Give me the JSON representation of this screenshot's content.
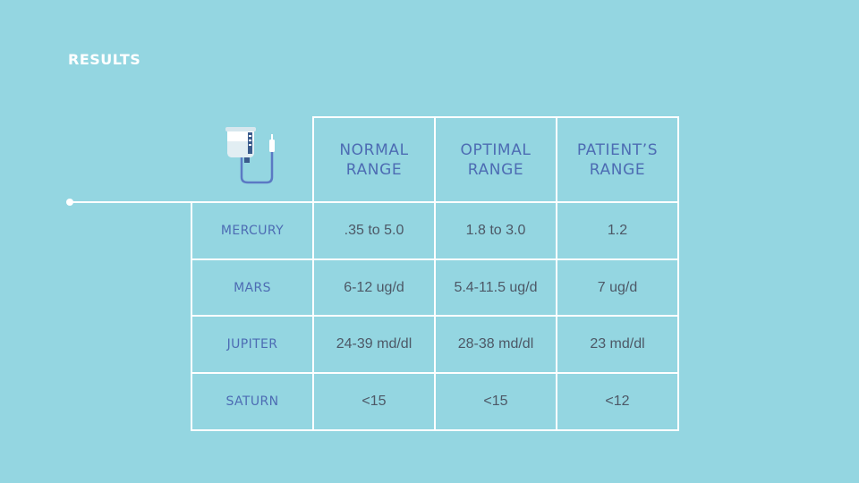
{
  "title": "RESULTS",
  "icons": {
    "header_icon": "iv-bag-icon"
  },
  "colors": {
    "background": "#94d6e1",
    "header_text": "#4d6cb3",
    "value_text": "#4d5866",
    "grid": "#ffffff"
  },
  "table": {
    "columns": [
      "NORMAL RANGE",
      "OPTIMAL RANGE",
      "PATIENT’S RANGE"
    ],
    "rows": [
      {
        "label": "MERCURY",
        "values": [
          ".35 to 5.0",
          "1.8 to 3.0",
          "1.2"
        ]
      },
      {
        "label": "MARS",
        "values": [
          "6-12 ug/d",
          "5.4-11.5 ug/d",
          "7 ug/d"
        ]
      },
      {
        "label": "JUPITER",
        "values": [
          "24-39 md/dl",
          "28-38 md/dl",
          "23 md/dl"
        ]
      },
      {
        "label": "SATURN",
        "values": [
          "<15",
          "<15",
          "<12"
        ]
      }
    ]
  }
}
